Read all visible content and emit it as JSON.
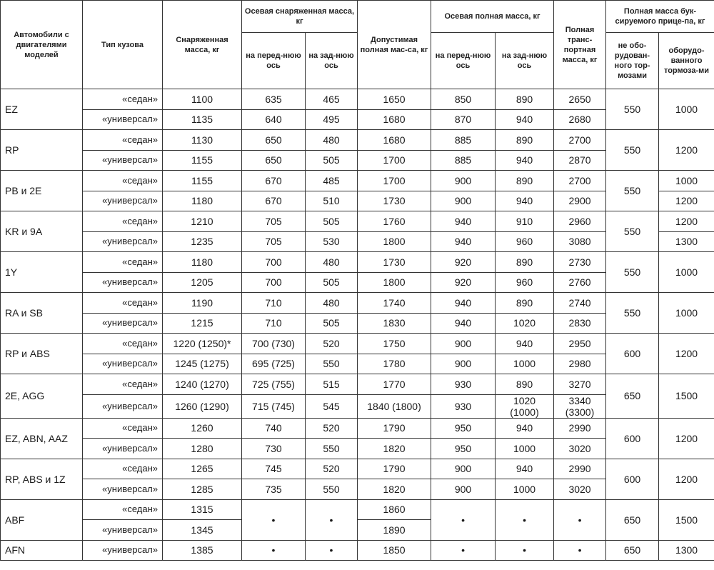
{
  "header": {
    "model": "Автомобили с двигателями моделей",
    "body_type": "Тип кузова",
    "curb_mass": "Снаряженная масса, кг",
    "axle_curb": "Осевая снаряженная масса, кг",
    "axle_curb_front": "на перед-нюю ось",
    "axle_curb_rear": "на зад-нюю ось",
    "gvw": "Допустимая полная мас-са, кг",
    "axle_gross": "Осевая полная масса, кг",
    "axle_gross_front": "на перед-нюю ось",
    "axle_gross_rear": "на зад-нюю ось",
    "gct": "Полная транс-портная масса, кг",
    "trailer": "Полная масса бук-сируемого прице-па, кг",
    "trailer_unbraked": "не обо-рудован-ного тор-мозами",
    "trailer_braked": "оборудо-ванного тормоза-ми"
  },
  "groups": [
    {
      "model": "EZ",
      "trailer_unbraked": "550",
      "trailer_braked": "1000",
      "rows": [
        {
          "body": "«седан»",
          "curb": "1100",
          "front": "635",
          "rear": "465",
          "gvw": "1650",
          "gfront": "850",
          "grear": "890",
          "gct": "2650"
        },
        {
          "body": "«универсал»",
          "curb": "1135",
          "front": "640",
          "rear": "495",
          "gvw": "1680",
          "gfront": "870",
          "grear": "940",
          "gct": "2680"
        }
      ]
    },
    {
      "model": "RP",
      "trailer_unbraked": "550",
      "trailer_braked": "1200",
      "rows": [
        {
          "body": "«седан»",
          "curb": "1130",
          "front": "650",
          "rear": "480",
          "gvw": "1680",
          "gfront": "885",
          "grear": "890",
          "gct": "2700"
        },
        {
          "body": "«универсал»",
          "curb": "1155",
          "front": "650",
          "rear": "505",
          "gvw": "1700",
          "gfront": "885",
          "grear": "940",
          "gct": "2870"
        }
      ]
    },
    {
      "model": "PB и 2E",
      "trailer_unbraked": "550",
      "rows": [
        {
          "body": "«седан»",
          "curb": "1155",
          "front": "670",
          "rear": "485",
          "gvw": "1700",
          "gfront": "900",
          "grear": "890",
          "gct": "2700",
          "braked": "1000"
        },
        {
          "body": "«универсал»",
          "curb": "1180",
          "front": "670",
          "rear": "510",
          "gvw": "1730",
          "gfront": "900",
          "grear": "940",
          "gct": "2900",
          "braked": "1200"
        }
      ]
    },
    {
      "model": "KR и 9A",
      "trailer_unbraked": "550",
      "rows": [
        {
          "body": "«седан»",
          "curb": "1210",
          "front": "705",
          "rear": "505",
          "gvw": "1760",
          "gfront": "940",
          "grear": "910",
          "gct": "2960",
          "braked": "1200"
        },
        {
          "body": "«универсал»",
          "curb": "1235",
          "front": "705",
          "rear": "530",
          "gvw": "1800",
          "gfront": "940",
          "grear": "960",
          "gct": "3080",
          "braked": "1300"
        }
      ]
    },
    {
      "model": "1Y",
      "trailer_unbraked": "550",
      "trailer_braked": "1000",
      "rows": [
        {
          "body": "«седан»",
          "curb": "1180",
          "front": "700",
          "rear": "480",
          "gvw": "1730",
          "gfront": "920",
          "grear": "890",
          "gct": "2730"
        },
        {
          "body": "«универсал»",
          "curb": "1205",
          "front": "700",
          "rear": "505",
          "gvw": "1800",
          "gfront": "920",
          "grear": "960",
          "gct": "2760"
        }
      ]
    },
    {
      "model": "RA и SB",
      "trailer_unbraked": "550",
      "trailer_braked": "1000",
      "rows": [
        {
          "body": "«седан»",
          "curb": "1190",
          "front": "710",
          "rear": "480",
          "gvw": "1740",
          "gfront": "940",
          "grear": "890",
          "gct": "2740"
        },
        {
          "body": "«универсал»",
          "curb": "1215",
          "front": "710",
          "rear": "505",
          "gvw": "1830",
          "gfront": "940",
          "grear": "1020",
          "gct": "2830"
        }
      ]
    },
    {
      "model": "RP и ABS",
      "trailer_unbraked": "600",
      "trailer_braked": "1200",
      "rows": [
        {
          "body": "«седан»",
          "curb": "1220 (1250)*",
          "front": "700 (730)",
          "rear": "520",
          "gvw": "1750",
          "gfront": "900",
          "grear": "940",
          "gct": "2950"
        },
        {
          "body": "«универсал»",
          "curb": "1245 (1275)",
          "front": "695 (725)",
          "rear": "550",
          "gvw": "1780",
          "gfront": "900",
          "grear": "1000",
          "gct": "2980"
        }
      ]
    },
    {
      "model": "2E, AGG",
      "trailer_unbraked": "650",
      "trailer_braked": "1500",
      "rows": [
        {
          "body": "«седан»",
          "curb": "1240 (1270)",
          "front": "725 (755)",
          "rear": "515",
          "gvw": "1770",
          "gfront": "930",
          "grear": "890",
          "gct": "3270"
        },
        {
          "body": "«универсал»",
          "curb": "1260 (1290)",
          "front": "715 (745)",
          "rear": "545",
          "gvw": "1840 (1800)",
          "gfront": "930",
          "grear": "1020\n(1000)",
          "gct": "3340\n(3300)"
        }
      ]
    },
    {
      "model": "EZ, ABN, AAZ",
      "trailer_unbraked": "600",
      "trailer_braked": "1200",
      "rows": [
        {
          "body": "«седан»",
          "curb": "1260",
          "front": "740",
          "rear": "520",
          "gvw": "1790",
          "gfront": "950",
          "grear": "940",
          "gct": "2990"
        },
        {
          "body": "«универсал»",
          "curb": "1280",
          "front": "730",
          "rear": "550",
          "gvw": "1820",
          "gfront": "950",
          "grear": "1000",
          "gct": "3020"
        }
      ]
    },
    {
      "model": "RP, ABS и 1Z",
      "trailer_unbraked": "600",
      "trailer_braked": "1200",
      "rows": [
        {
          "body": "«седан»",
          "curb": "1265",
          "front": "745",
          "rear": "520",
          "gvw": "1790",
          "gfront": "900",
          "grear": "940",
          "gct": "2990"
        },
        {
          "body": "«универсал»",
          "curb": "1285",
          "front": "735",
          "rear": "550",
          "gvw": "1820",
          "gfront": "900",
          "grear": "1000",
          "gct": "3020"
        }
      ]
    },
    {
      "model": "ABF",
      "trailer_unbraked": "650",
      "trailer_braked": "1500",
      "merged_dot": "•",
      "rows": [
        {
          "body": "«седан»",
          "curb": "1315",
          "gvw": "1860"
        },
        {
          "body": "«универсал»",
          "curb": "1345",
          "gvw": "1890"
        }
      ]
    },
    {
      "model": "AFN",
      "trailer_unbraked": "650",
      "trailer_braked": "1300",
      "rows": [
        {
          "body": "«универсал»",
          "curb": "1385",
          "front": "•",
          "rear": "•",
          "gvw": "1850",
          "gfront": "•",
          "grear": "•",
          "gct": "•"
        }
      ]
    }
  ]
}
